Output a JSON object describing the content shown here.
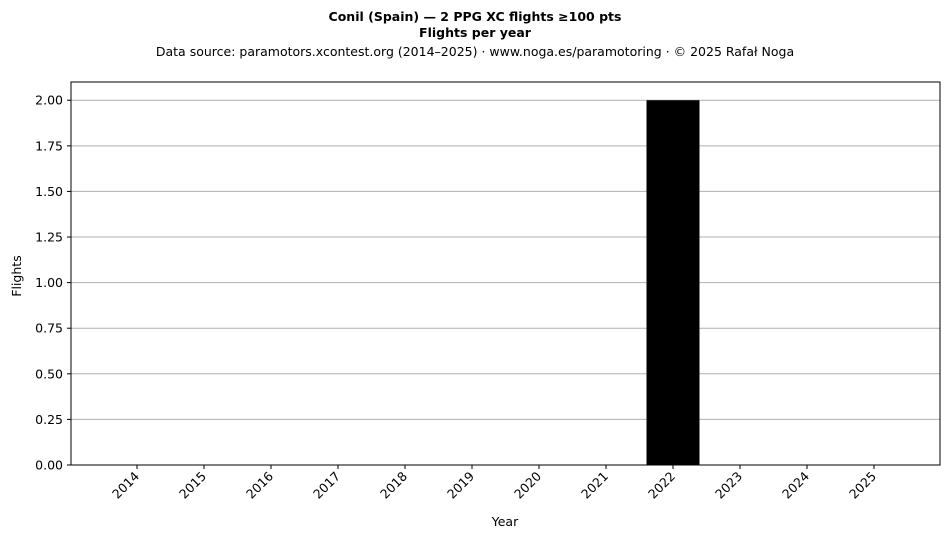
{
  "chart_data": {
    "type": "bar",
    "title": "Conil (Spain)  —  2 PPG XC flights ≥100 pts",
    "subtitle": "Flights per year",
    "source": "Data source: paramotors.xcontest.org (2014–2025)  ·  www.noga.es/paramotoring  ·  © 2025 Rafał Noga",
    "xlabel": "Year",
    "ylabel": "Flights",
    "categories": [
      "2014",
      "2015",
      "2016",
      "2017",
      "2018",
      "2019",
      "2020",
      "2021",
      "2022",
      "2023",
      "2024",
      "2025"
    ],
    "values": [
      0,
      0,
      0,
      0,
      0,
      0,
      0,
      0,
      2,
      0,
      0,
      0
    ],
    "ylim": [
      0,
      2.1
    ],
    "yticks": [
      "0.00",
      "0.25",
      "0.50",
      "0.75",
      "1.00",
      "1.25",
      "1.50",
      "1.75",
      "2.00"
    ],
    "grid": "y",
    "bar_color": "#000000",
    "grid_color": "#b0b0b0"
  }
}
